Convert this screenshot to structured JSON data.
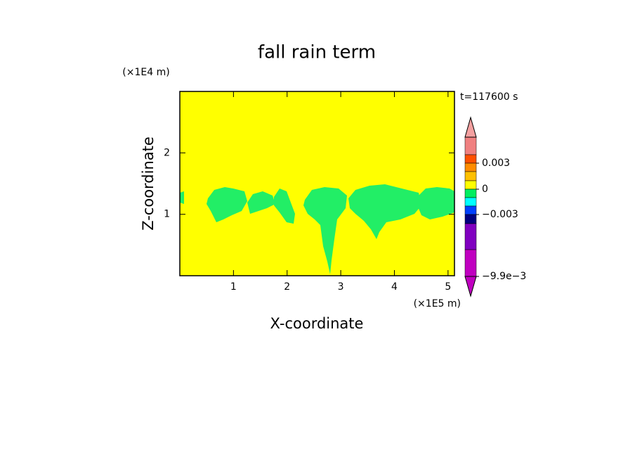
{
  "chart_data": {
    "type": "contour",
    "title": "fall rain term",
    "x_label": "X-coordinate",
    "y_label": "Z-coordinate",
    "x_unit": "(×1E5 m)",
    "y_unit": "(×1E4 m)",
    "time_label": "t=117600 s",
    "xlim": [
      0,
      5.12
    ],
    "ylim": [
      0,
      3
    ],
    "xticks": [
      1,
      2,
      3,
      4,
      5
    ],
    "yticks": [
      1,
      2
    ],
    "grid": false,
    "background_color": "#ffff00",
    "feature_color": "#22ee66",
    "colorbar": {
      "bounds": [
        0.006,
        0.004,
        0.003,
        0.002,
        0.001,
        0,
        -0.001,
        -0.002,
        -0.003,
        -0.004,
        -0.007,
        -0.0099
      ],
      "colors": [
        "#f08080",
        "#ff5000",
        "#ff8c00",
        "#ffc000",
        "#ffff00",
        "#00ee60",
        "#00ffff",
        "#0040ff",
        "#000080",
        "#8000c0",
        "#c000c0"
      ],
      "extend_colors": [
        "#f4a0a0",
        "#c000c0"
      ],
      "ticks": [
        0.003,
        0,
        {
          "value": -0.003,
          "label": "−0.003"
        },
        {
          "value": -0.0099,
          "label": "−9.9e−3"
        }
      ]
    }
  }
}
